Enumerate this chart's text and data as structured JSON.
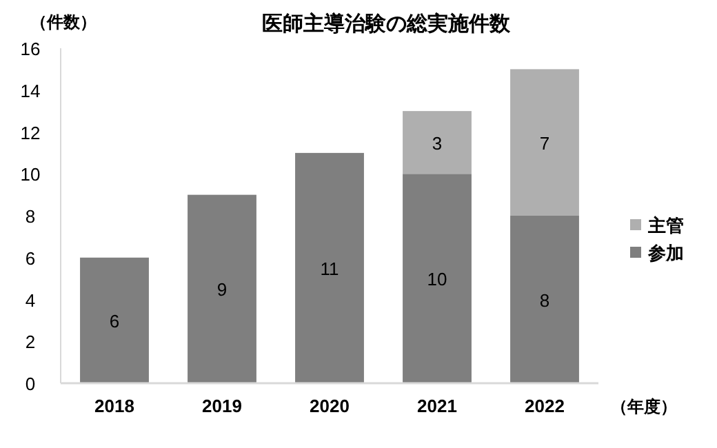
{
  "chart_data": {
    "type": "bar",
    "title": "医師主導治験の総実施件数",
    "ylabel": "（件数）",
    "xlabel": "（年度）",
    "categories": [
      "2018",
      "2019",
      "2020",
      "2021",
      "2022"
    ],
    "stacked": true,
    "data_labels": true,
    "legend": "right",
    "grid": false,
    "ylim": [
      0,
      16
    ],
    "yticks": [
      0,
      2,
      4,
      6,
      8,
      10,
      12,
      14,
      16
    ],
    "series": [
      {
        "name": "参加",
        "color": "#7f7f7f",
        "values": [
          6,
          9,
          11,
          10,
          8
        ]
      },
      {
        "name": "主管",
        "color": "#afafaf",
        "values": [
          null,
          null,
          null,
          3,
          7
        ]
      }
    ]
  }
}
